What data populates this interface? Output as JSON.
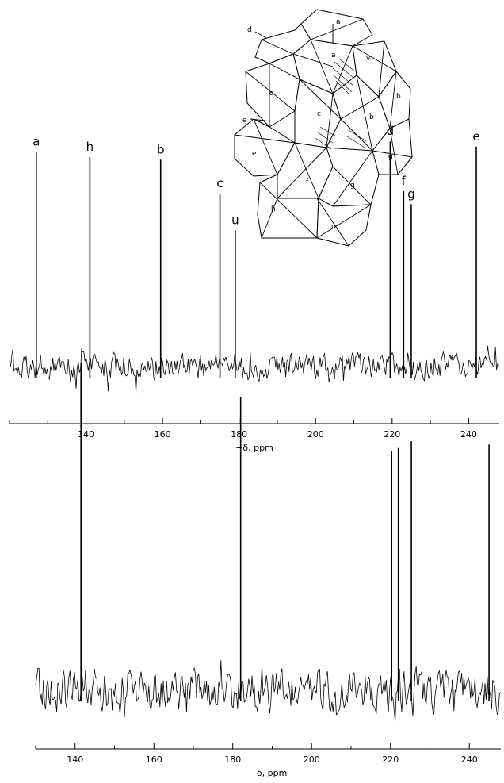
{
  "chart_data": [
    {
      "type": "line",
      "title": "",
      "xlabel": "−δ, ppm",
      "ylabel": "",
      "xlim": [
        120,
        248
      ],
      "xticks": [
        140,
        160,
        180,
        200,
        220,
        240
      ],
      "grid": false,
      "peaks": [
        {
          "label": "a",
          "x": 127,
          "height": 0.82
        },
        {
          "label": "h",
          "x": 141,
          "height": 0.8
        },
        {
          "label": "b",
          "x": 159.5,
          "height": 0.79
        },
        {
          "label": "c",
          "x": 175,
          "height": 0.66
        },
        {
          "label": "u",
          "x": 179,
          "height": 0.52
        },
        {
          "label": "d",
          "x": 219.5,
          "height": 0.86
        },
        {
          "label": "f",
          "x": 223,
          "height": 0.67
        },
        {
          "label": "g",
          "x": 225,
          "height": 0.62
        },
        {
          "label": "e",
          "x": 242,
          "height": 0.84
        }
      ],
      "inset": {
        "type": "polyhedral-structure",
        "labels": [
          "a",
          "a",
          "v",
          "d",
          "d",
          "b",
          "c",
          "b",
          "e",
          "e",
          "g",
          "f",
          "g",
          "h",
          "u"
        ]
      }
    },
    {
      "type": "line",
      "title": "",
      "xlabel": "−δ, ppm",
      "ylabel": "",
      "xlim": [
        130,
        248
      ],
      "xticks": [
        140,
        160,
        180,
        200,
        220,
        240
      ],
      "grid": false,
      "peaks": [
        {
          "x": 141.5,
          "height": 0.96
        },
        {
          "x": 182,
          "height": 0.86
        },
        {
          "x": 220.3,
          "height": 0.7
        },
        {
          "x": 222.0,
          "height": 0.71
        },
        {
          "x": 225.3,
          "height": 0.73
        },
        {
          "x": 245.0,
          "height": 0.72
        }
      ]
    }
  ]
}
